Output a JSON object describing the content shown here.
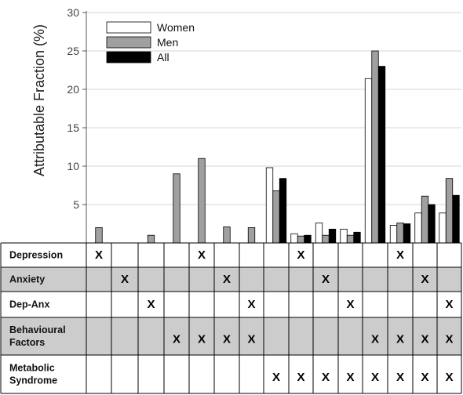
{
  "chart_data": {
    "type": "bar",
    "ylabel": "Attributable Fraction (%)",
    "ylim": [
      0,
      30
    ],
    "yticks": [
      5,
      10,
      15,
      20,
      25,
      30
    ],
    "grid": "horizontal",
    "legend_position": "top-left",
    "series": [
      {
        "name": "Women",
        "color": "#ffffff",
        "values": [
          0,
          0,
          0,
          0,
          0,
          0,
          0,
          9.8,
          1.2,
          2.6,
          1.8,
          21.4,
          2.3,
          3.9,
          3.9
        ]
      },
      {
        "name": "Men",
        "color": "#a0a0a0",
        "values": [
          2.0,
          0,
          1.0,
          9.0,
          11.0,
          2.1,
          2.0,
          6.8,
          0.9,
          1.0,
          1.0,
          25.0,
          2.6,
          6.1,
          8.4
        ]
      },
      {
        "name": "All",
        "color": "#000000",
        "values": [
          0,
          0,
          0,
          0,
          0,
          0,
          0,
          8.4,
          1.0,
          1.8,
          1.4,
          23.0,
          2.5,
          5.0,
          6.2
        ]
      }
    ]
  },
  "factor_table": {
    "rows": [
      {
        "label": "Depression",
        "shaded": false,
        "marks": [
          1,
          0,
          0,
          0,
          1,
          0,
          0,
          0,
          1,
          0,
          0,
          0,
          1,
          0,
          0
        ]
      },
      {
        "label": "Anxiety",
        "shaded": true,
        "marks": [
          0,
          1,
          0,
          0,
          0,
          1,
          0,
          0,
          0,
          1,
          0,
          0,
          0,
          1,
          0
        ]
      },
      {
        "label": "Dep-Anx",
        "shaded": false,
        "marks": [
          0,
          0,
          1,
          0,
          0,
          0,
          1,
          0,
          0,
          0,
          1,
          0,
          0,
          0,
          1
        ]
      },
      {
        "label": "Behavioural\nFactors",
        "shaded": true,
        "marks": [
          0,
          0,
          0,
          1,
          1,
          1,
          1,
          0,
          0,
          0,
          0,
          1,
          1,
          1,
          1
        ]
      },
      {
        "label": "Metabolic\nSyndrome",
        "shaded": false,
        "marks": [
          0,
          0,
          0,
          0,
          0,
          0,
          0,
          1,
          1,
          1,
          1,
          1,
          1,
          1,
          1
        ]
      }
    ],
    "mark_symbol": "X",
    "shade_color": "#cccccc"
  }
}
